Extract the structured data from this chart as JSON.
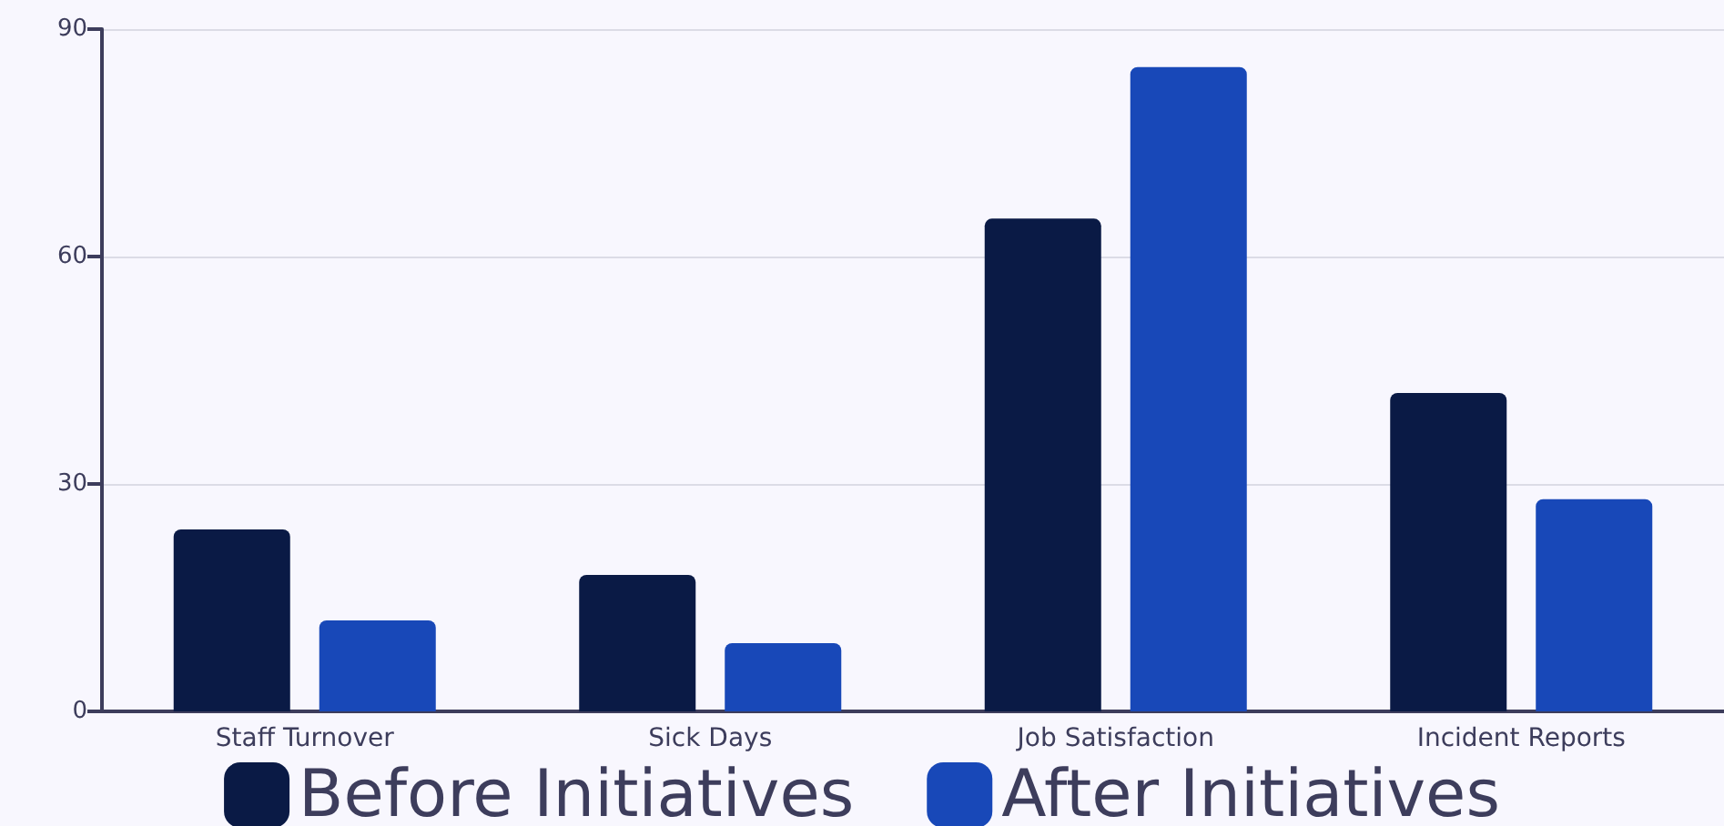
{
  "chart_data": {
    "type": "bar",
    "categories": [
      "Staff Turnover",
      "Sick Days",
      "Job Satisfaction",
      "Incident Reports"
    ],
    "series": [
      {
        "name": "Before Initiatives",
        "color": "#0a1a45",
        "values": [
          24,
          18,
          65,
          42
        ]
      },
      {
        "name": "After Initiatives",
        "color": "#1848b8",
        "values": [
          12,
          9,
          85,
          28
        ]
      }
    ],
    "ylim": [
      0,
      90
    ],
    "yticks": [
      0,
      30,
      60,
      90
    ],
    "grid": "y",
    "legend": "bottom"
  }
}
